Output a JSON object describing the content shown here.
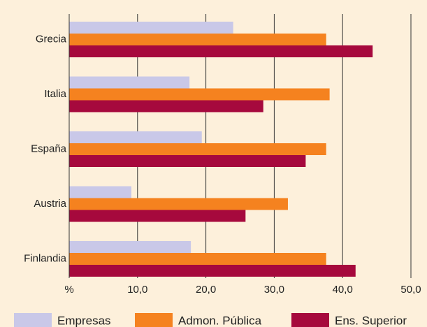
{
  "chart_data": {
    "type": "hbar",
    "categories": [
      "Grecia",
      "Italia",
      "España",
      "Austria",
      "Finlandia"
    ],
    "series": [
      {
        "name": "Empresas",
        "color": "#c9c8e8",
        "values": [
          24.0,
          17.6,
          19.4,
          9.1,
          17.8
        ]
      },
      {
        "name": "Admon. Pública",
        "color": "#f5821f",
        "values": [
          37.6,
          38.1,
          37.6,
          32.0,
          37.6
        ]
      },
      {
        "name": "Ens. Superior",
        "color": "#a6093d",
        "values": [
          44.4,
          28.4,
          34.6,
          25.8,
          41.9
        ]
      }
    ],
    "xlim": [
      0,
      50
    ],
    "xticks": [
      {
        "value": 0,
        "label": "%"
      },
      {
        "value": 10,
        "label": "10,0"
      },
      {
        "value": 20,
        "label": "20,0"
      },
      {
        "value": 30,
        "label": "30,0"
      },
      {
        "value": 40,
        "label": "40,0"
      },
      {
        "value": 50,
        "label": "50,0"
      }
    ],
    "grid": true
  }
}
